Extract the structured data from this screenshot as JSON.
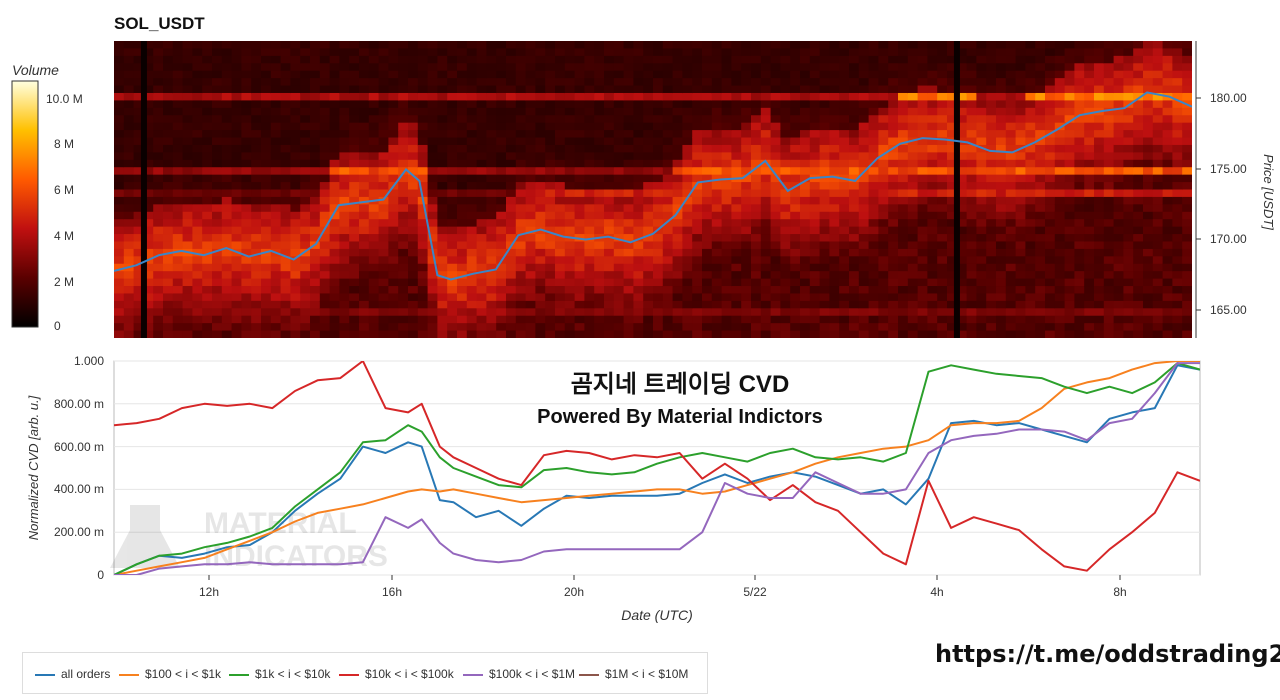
{
  "header": {
    "title": "SOL_USDT",
    "colorbar_label": "Volume",
    "colorbar_ticks": [
      "10.0 M",
      "8 M",
      "6 M",
      "4 M",
      "2 M",
      "0"
    ]
  },
  "heatmap": {
    "price_axis_label": "Price [USDT]",
    "price_ticks": [
      "180.00",
      "175.00",
      "170.00",
      "165.00"
    ]
  },
  "cvd": {
    "overlay_line1": "곰지네 트레이딩 CVD",
    "overlay_line2": "Powered By Material Indictors",
    "watermark_line1": "MATERIAL",
    "watermark_line2": "INDICATORS",
    "ylabel": "Normalized CVD [arb. u.]",
    "xlabel": "Date (UTC)",
    "y_ticks": [
      "1.000",
      "800.00 m",
      "600.00 m",
      "400.00 m",
      "200.00 m",
      "0"
    ],
    "x_ticks": [
      "12h",
      "16h",
      "20h",
      "5/22",
      "4h",
      "8h"
    ]
  },
  "legend": [
    {
      "label": "all orders",
      "color": "#2878b5"
    },
    {
      "label": "$100 < i < $1k",
      "color": "#f7811f"
    },
    {
      "label": "$1k < i < $10k",
      "color": "#2ca02c"
    },
    {
      "label": "$10k < i < $100k",
      "color": "#d62728"
    },
    {
      "label": "$100k < i < $1M",
      "color": "#9467bd"
    },
    {
      "label": "$1M < i < $10M",
      "color": "#8c564b"
    }
  ],
  "footer": {
    "link": "https://t.me/oddstrading2"
  },
  "chart_data": [
    {
      "type": "heatmap",
      "title": "SOL_USDT",
      "ylabel": "Price [USDT]",
      "ylim": [
        163.2,
        184.0
      ],
      "colorbar": {
        "label": "Volume",
        "range": [
          0,
          11000000
        ]
      },
      "price_series": {
        "name": "price",
        "x_hours": [
          10,
          10.5,
          11,
          11.5,
          12,
          12.5,
          13,
          13.5,
          14,
          14.5,
          15,
          15.5,
          16,
          16.5,
          16.8,
          17.2,
          17.5,
          18,
          18.5,
          19,
          19.5,
          20,
          20.5,
          21,
          21.5,
          22,
          22.5,
          23,
          23.5,
          24,
          24.5,
          25,
          25.5,
          26,
          26.5,
          27,
          27.5,
          28,
          28.5,
          29,
          29.5,
          30,
          30.5,
          31,
          31.5,
          32,
          32.5,
          33,
          33.5,
          34
        ],
        "values": [
          167.9,
          168.3,
          169.0,
          169.3,
          169.0,
          169.5,
          168.9,
          169.3,
          168.7,
          169.8,
          172.5,
          172.7,
          172.9,
          175.0,
          174.2,
          167.6,
          167.3,
          167.7,
          168.0,
          170.4,
          170.8,
          170.3,
          170.1,
          170.3,
          169.9,
          170.5,
          171.8,
          174.1,
          174.3,
          174.4,
          175.6,
          173.5,
          174.4,
          174.5,
          174.2,
          175.8,
          176.8,
          177.2,
          177.1,
          176.9,
          176.3,
          176.2,
          176.9,
          177.8,
          178.8,
          179.1,
          179.3,
          180.4,
          180.1,
          179.4
        ]
      },
      "bright_bands": [
        {
          "price": 180.0,
          "level": 7800000
        },
        {
          "price": 175.0,
          "level": 6800000
        },
        {
          "price": 173.2,
          "level": 5200000
        },
        {
          "price": 165.0,
          "level": 3200000
        }
      ]
    },
    {
      "type": "line",
      "xlabel": "Date (UTC)",
      "ylabel": "Normalized CVD [arb. u.]",
      "ylim": [
        0,
        1.0
      ],
      "x_hours": [
        10,
        10.5,
        11,
        11.5,
        12,
        12.5,
        13,
        13.5,
        14,
        14.5,
        15,
        15.5,
        16,
        16.5,
        16.8,
        17.2,
        17.5,
        18,
        18.5,
        19,
        19.5,
        20,
        20.5,
        21,
        21.5,
        22,
        22.5,
        23,
        23.5,
        24,
        24.5,
        25,
        25.5,
        26,
        26.5,
        27,
        27.5,
        28,
        28.5,
        29,
        29.5,
        30,
        30.5,
        31,
        31.5,
        32,
        32.5,
        33,
        33.5,
        34
      ],
      "x_ticks": [
        "12h",
        "16h",
        "20h",
        "5/22",
        "4h",
        "8h"
      ],
      "series": [
        {
          "name": "all orders",
          "values": [
            0.0,
            0.05,
            0.09,
            0.08,
            0.1,
            0.13,
            0.14,
            0.2,
            0.3,
            0.38,
            0.45,
            0.6,
            0.57,
            0.62,
            0.6,
            0.35,
            0.34,
            0.27,
            0.3,
            0.23,
            0.31,
            0.37,
            0.36,
            0.37,
            0.37,
            0.37,
            0.38,
            0.43,
            0.47,
            0.43,
            0.46,
            0.48,
            0.46,
            0.42,
            0.38,
            0.4,
            0.33,
            0.45,
            0.71,
            0.72,
            0.7,
            0.71,
            0.68,
            0.65,
            0.62,
            0.73,
            0.76,
            0.78,
            0.98,
            0.96
          ]
        },
        {
          "name": "$100 < i < $1k",
          "values": [
            0.0,
            0.02,
            0.04,
            0.06,
            0.08,
            0.12,
            0.16,
            0.2,
            0.25,
            0.29,
            0.31,
            0.33,
            0.36,
            0.39,
            0.4,
            0.39,
            0.4,
            0.38,
            0.36,
            0.34,
            0.35,
            0.36,
            0.37,
            0.38,
            0.39,
            0.4,
            0.4,
            0.38,
            0.39,
            0.42,
            0.45,
            0.48,
            0.52,
            0.55,
            0.57,
            0.59,
            0.6,
            0.63,
            0.7,
            0.71,
            0.71,
            0.72,
            0.78,
            0.87,
            0.9,
            0.92,
            0.96,
            0.99,
            1.0,
            1.0
          ]
        },
        {
          "name": "$1k < i < $10k",
          "values": [
            0.0,
            0.05,
            0.09,
            0.1,
            0.13,
            0.15,
            0.18,
            0.22,
            0.32,
            0.4,
            0.48,
            0.62,
            0.63,
            0.7,
            0.67,
            0.55,
            0.5,
            0.46,
            0.42,
            0.41,
            0.49,
            0.5,
            0.48,
            0.47,
            0.48,
            0.52,
            0.55,
            0.57,
            0.55,
            0.53,
            0.57,
            0.59,
            0.55,
            0.54,
            0.55,
            0.53,
            0.57,
            0.95,
            0.98,
            0.96,
            0.94,
            0.93,
            0.92,
            0.88,
            0.85,
            0.88,
            0.85,
            0.9,
            0.99,
            0.96
          ]
        },
        {
          "name": "$10k < i < $100k",
          "values": [
            0.7,
            0.71,
            0.73,
            0.78,
            0.8,
            0.79,
            0.8,
            0.78,
            0.86,
            0.91,
            0.92,
            1.0,
            0.78,
            0.76,
            0.8,
            0.6,
            0.55,
            0.5,
            0.45,
            0.42,
            0.56,
            0.58,
            0.57,
            0.54,
            0.56,
            0.55,
            0.57,
            0.45,
            0.52,
            0.45,
            0.35,
            0.42,
            0.34,
            0.3,
            0.2,
            0.1,
            0.05,
            0.44,
            0.22,
            0.27,
            0.24,
            0.21,
            0.12,
            0.04,
            0.02,
            0.12,
            0.2,
            0.29,
            0.48,
            0.44
          ]
        },
        {
          "name": "$100k < i < $1M",
          "values": [
            0.0,
            0.0,
            0.03,
            0.04,
            0.05,
            0.05,
            0.06,
            0.05,
            0.05,
            0.05,
            0.05,
            0.06,
            0.27,
            0.22,
            0.26,
            0.15,
            0.1,
            0.07,
            0.06,
            0.07,
            0.11,
            0.12,
            0.12,
            0.12,
            0.12,
            0.12,
            0.12,
            0.2,
            0.43,
            0.38,
            0.36,
            0.36,
            0.48,
            0.43,
            0.38,
            0.38,
            0.4,
            0.57,
            0.63,
            0.65,
            0.66,
            0.68,
            0.68,
            0.67,
            0.63,
            0.71,
            0.73,
            0.85,
            0.99,
            0.99
          ]
        },
        {
          "name": "$1M < i < $10M",
          "values": []
        }
      ]
    }
  ]
}
